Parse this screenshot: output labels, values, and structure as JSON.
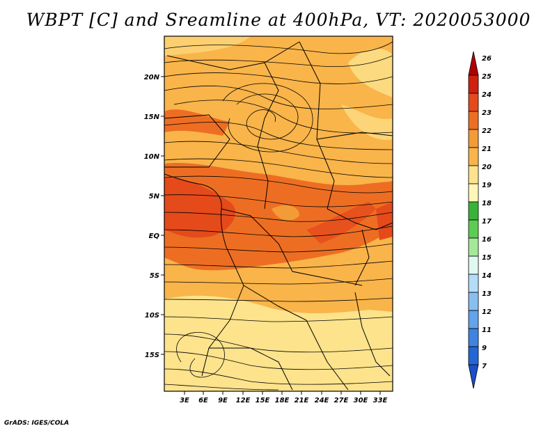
{
  "title": "WBPT [C] and Sreamline at 400hPa, VT: 2020053000",
  "credit": "GrADS: IGES/COLA",
  "map": {
    "lat_labels": [
      "20N",
      "15N",
      "10N",
      "5N",
      "EQ",
      "5S",
      "10S",
      "15S"
    ],
    "lon_labels": [
      "3E",
      "6E",
      "9E",
      "12E",
      "15E",
      "18E",
      "21E",
      "24E",
      "27E",
      "30E",
      "33E"
    ],
    "shading_colors": {
      "19_20": "#fde38c",
      "20_21": "#f9b44a",
      "21_22": "#f39b37",
      "22_23": "#ed6e23",
      "23_24": "#e54a1b"
    }
  },
  "colorbar": {
    "labels": [
      "26",
      "25",
      "24",
      "23",
      "22",
      "21",
      "20",
      "19",
      "18",
      "17",
      "16",
      "15",
      "14",
      "13",
      "12",
      "11",
      "9",
      "7"
    ],
    "colors": [
      "#b00000",
      "#d0200f",
      "#e54a1b",
      "#ed6e23",
      "#f39b37",
      "#f9b44a",
      "#fde38c",
      "#fff7b8",
      "#37b438",
      "#5ccd52",
      "#a6e89a",
      "#e1f8f0",
      "#b3dcf8",
      "#88bff0",
      "#62a4eb",
      "#3f84e0",
      "#2366d6",
      "#1e4fc8"
    ]
  }
}
